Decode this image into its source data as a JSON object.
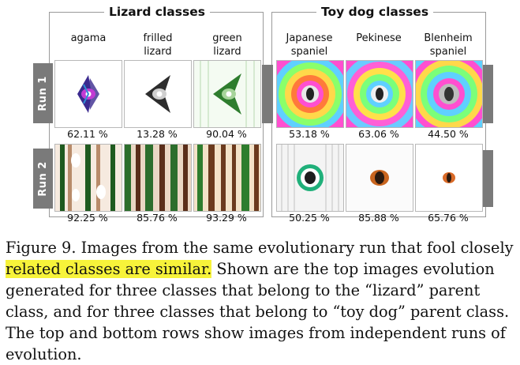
{
  "lizard": {
    "title": "Lizard classes",
    "classes": [
      "agama",
      "frilled\nlizard",
      "green\nlizard"
    ],
    "run1": [
      "62.11 %",
      "13.28 %",
      "90.04 %"
    ],
    "run2": [
      "92.25 %",
      "85.76 %",
      "93.29 %"
    ]
  },
  "dog": {
    "title": "Toy dog classes",
    "classes": [
      "Japanese\nspaniel",
      "Pekinese",
      "Blenheim\nspaniel"
    ],
    "run1": [
      "53.18 %",
      "63.06 %",
      "44.50 %"
    ],
    "run2": [
      "50.25 %",
      "85.88 %",
      "65.76 %"
    ]
  },
  "rows": [
    "Run 1",
    "Run 2"
  ],
  "caption": {
    "lead": "Figure 9. Images from the same evolutionary run that fool closely",
    "highlight": "related classes are similar.",
    "rest": " Shown are the top images evolution generated for three classes that belong to the “lizard” parent class, and for three classes that belong to “toy dog” parent class. The top and bottom rows show images from independent runs of evolution."
  }
}
